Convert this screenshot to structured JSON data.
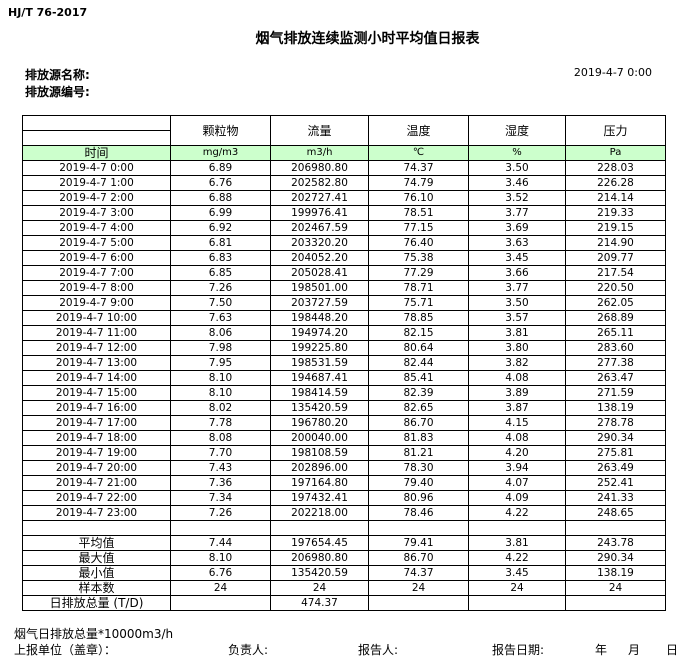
{
  "standard": "HJ/T  76-2017",
  "title": "烟气排放连续监测小时平均值日报表",
  "source_name_label": "排放源名称:",
  "source_code_label": "排放源编号:",
  "report_datetime": "2019-4-7 0:00",
  "columns": [
    "颗粒物",
    "流量",
    "温度",
    "湿度",
    "压力"
  ],
  "units": [
    "时间",
    "mg/m3",
    "m3/h",
    "℃",
    "%",
    "Pa"
  ],
  "rows": [
    [
      "2019-4-7 0:00",
      "6.89",
      "206980.80",
      "74.37",
      "3.50",
      "228.03"
    ],
    [
      "2019-4-7 1:00",
      "6.76",
      "202582.80",
      "74.79",
      "3.46",
      "226.28"
    ],
    [
      "2019-4-7 2:00",
      "6.88",
      "202727.41",
      "76.10",
      "3.52",
      "214.14"
    ],
    [
      "2019-4-7 3:00",
      "6.99",
      "199976.41",
      "78.51",
      "3.77",
      "219.33"
    ],
    [
      "2019-4-7 4:00",
      "6.92",
      "202467.59",
      "77.15",
      "3.69",
      "219.15"
    ],
    [
      "2019-4-7 5:00",
      "6.81",
      "203320.20",
      "76.40",
      "3.63",
      "214.90"
    ],
    [
      "2019-4-7 6:00",
      "6.83",
      "204052.20",
      "75.38",
      "3.45",
      "209.77"
    ],
    [
      "2019-4-7 7:00",
      "6.85",
      "205028.41",
      "77.29",
      "3.66",
      "217.54"
    ],
    [
      "2019-4-7 8:00",
      "7.26",
      "198501.00",
      "78.71",
      "3.77",
      "220.50"
    ],
    [
      "2019-4-7 9:00",
      "7.50",
      "203727.59",
      "75.71",
      "3.50",
      "262.05"
    ],
    [
      "2019-4-7 10:00",
      "7.63",
      "198448.20",
      "78.85",
      "3.57",
      "268.89"
    ],
    [
      "2019-4-7 11:00",
      "8.06",
      "194974.20",
      "82.15",
      "3.81",
      "265.11"
    ],
    [
      "2019-4-7 12:00",
      "7.98",
      "199225.80",
      "80.64",
      "3.80",
      "283.60"
    ],
    [
      "2019-4-7 13:00",
      "7.95",
      "198531.59",
      "82.44",
      "3.82",
      "277.38"
    ],
    [
      "2019-4-7 14:00",
      "8.10",
      "194687.41",
      "85.41",
      "4.08",
      "263.47"
    ],
    [
      "2019-4-7 15:00",
      "8.10",
      "198414.59",
      "82.39",
      "3.89",
      "271.59"
    ],
    [
      "2019-4-7 16:00",
      "8.02",
      "135420.59",
      "82.65",
      "3.87",
      "138.19"
    ],
    [
      "2019-4-7 17:00",
      "7.78",
      "196780.20",
      "86.70",
      "4.15",
      "278.78"
    ],
    [
      "2019-4-7 18:00",
      "8.08",
      "200040.00",
      "81.83",
      "4.08",
      "290.34"
    ],
    [
      "2019-4-7 19:00",
      "7.70",
      "198108.59",
      "81.21",
      "4.20",
      "275.81"
    ],
    [
      "2019-4-7 20:00",
      "7.43",
      "202896.00",
      "78.30",
      "3.94",
      "263.49"
    ],
    [
      "2019-4-7 21:00",
      "7.36",
      "197164.80",
      "79.40",
      "4.07",
      "252.41"
    ],
    [
      "2019-4-7 22:00",
      "7.34",
      "197432.41",
      "80.96",
      "4.09",
      "241.33"
    ],
    [
      "2019-4-7 23:00",
      "7.26",
      "202218.00",
      "78.46",
      "4.22",
      "248.65"
    ]
  ],
  "summary": [
    [
      "平均值",
      "7.44",
      "197654.45",
      "79.41",
      "3.81",
      "243.78"
    ],
    [
      "最大值",
      "8.10",
      "206980.80",
      "86.70",
      "4.22",
      "290.34"
    ],
    [
      "最小值",
      "6.76",
      "135420.59",
      "74.37",
      "3.45",
      "138.19"
    ],
    [
      "样本数",
      "24",
      "24",
      "24",
      "24",
      "24"
    ],
    [
      "日排放总量 (T/D)",
      "",
      "474.37",
      "",
      "",
      ""
    ]
  ],
  "footer": {
    "note": "烟气日排放总量*10000m3/h",
    "unit_label": "上报单位（盖章）：",
    "responsible_label": "负责人:",
    "reporter_label": "报告人:",
    "report_date_label": "报告日期:",
    "year": "年",
    "month": "月",
    "day": "日"
  }
}
